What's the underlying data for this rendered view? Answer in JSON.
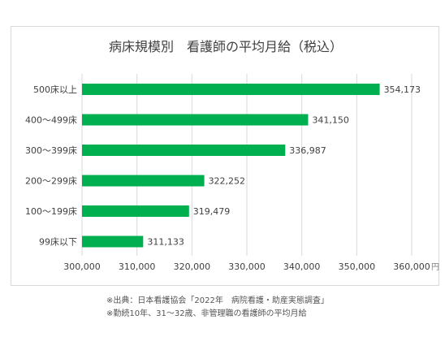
{
  "chart_data": {
    "type": "bar",
    "orientation": "horizontal",
    "title": "病床規模別　看護師の平均月給（税込）",
    "categories": [
      "500床以上",
      "400～499床",
      "300～399床",
      "200～299床",
      "100～199床",
      "99床以下"
    ],
    "values": [
      354173,
      341150,
      336987,
      322252,
      319479,
      311133
    ],
    "value_labels": [
      "354,173",
      "341,150",
      "336,987",
      "322,252",
      "319,479",
      "311,133"
    ],
    "xlim": [
      300000,
      360000
    ],
    "ticks": [
      300000,
      310000,
      320000,
      330000,
      340000,
      350000,
      360000
    ],
    "tick_labels": [
      "300,000",
      "310,000",
      "320,000",
      "330,000",
      "340,000",
      "350,000",
      "360,000"
    ],
    "unit": "円",
    "bar_color": "#00b050",
    "grid": true,
    "legend": "none"
  },
  "notes": [
    "※出典：日本看護協会「2022年　病院看護・助産実態調査」",
    "※勤続10年、31～32歳、非管理職の看護師の平均月給"
  ]
}
